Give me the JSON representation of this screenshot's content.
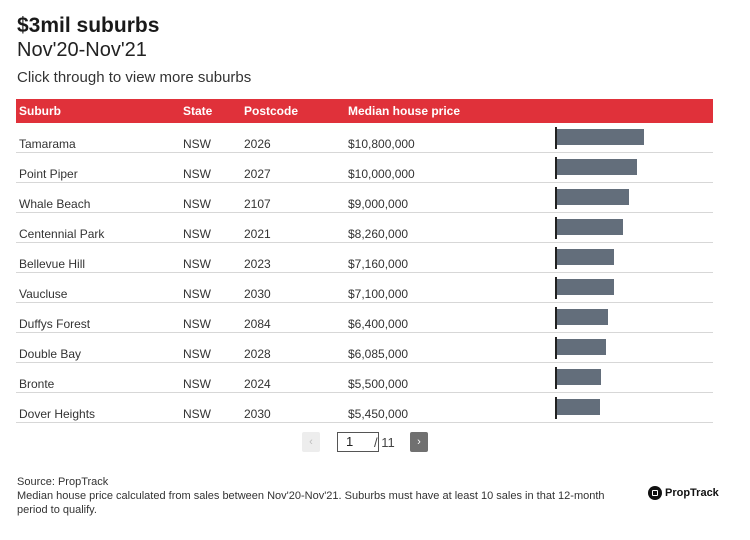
{
  "header": {
    "title": "$3mil suburbs",
    "subtitle": "Nov'20-Nov'21",
    "description": "Click through to view more suburbs"
  },
  "table": {
    "columns": [
      "Suburb",
      "State",
      "Postcode",
      "Median house price"
    ]
  },
  "chart_data": {
    "type": "table",
    "title": "$3mil suburbs",
    "subtitle": "Nov'20-Nov'21",
    "columns": [
      "Suburb",
      "State",
      "Postcode",
      "Median house price"
    ],
    "bar_color": "#636e7b",
    "header_color": "#e0313a",
    "rows": [
      {
        "suburb": "Tamarama",
        "state": "NSW",
        "postcode": "2026",
        "price_label": "$10,800,000",
        "value": 10800000
      },
      {
        "suburb": "Point Piper",
        "state": "NSW",
        "postcode": "2027",
        "price_label": "$10,000,000",
        "value": 10000000
      },
      {
        "suburb": "Whale Beach",
        "state": "NSW",
        "postcode": "2107",
        "price_label": "$9,000,000",
        "value": 9000000
      },
      {
        "suburb": "Centennial Park",
        "state": "NSW",
        "postcode": "2021",
        "price_label": "$8,260,000",
        "value": 8260000
      },
      {
        "suburb": "Bellevue Hill",
        "state": "NSW",
        "postcode": "2023",
        "price_label": "$7,160,000",
        "value": 7160000
      },
      {
        "suburb": "Vaucluse",
        "state": "NSW",
        "postcode": "2030",
        "price_label": "$7,100,000",
        "value": 7100000
      },
      {
        "suburb": "Duffys Forest",
        "state": "NSW",
        "postcode": "2084",
        "price_label": "$6,400,000",
        "value": 6400000
      },
      {
        "suburb": "Double Bay",
        "state": "NSW",
        "postcode": "2028",
        "price_label": "$6,085,000",
        "value": 6085000
      },
      {
        "suburb": "Bronte",
        "state": "NSW",
        "postcode": "2024",
        "price_label": "$5,500,000",
        "value": 5500000
      },
      {
        "suburb": "Dover Heights",
        "state": "NSW",
        "postcode": "2030",
        "price_label": "$5,450,000",
        "value": 5450000
      }
    ]
  },
  "pagination": {
    "prev_label": "‹",
    "next_label": "›",
    "current_page": "1",
    "total_label": "/ 11"
  },
  "footer": {
    "source": "Source: PropTrack",
    "note": "Median house price calculated from sales between Nov'20-Nov'21. Suburbs must have at least 10 sales in that 12-month period to qualify.",
    "logo_text": "PropTrack"
  }
}
